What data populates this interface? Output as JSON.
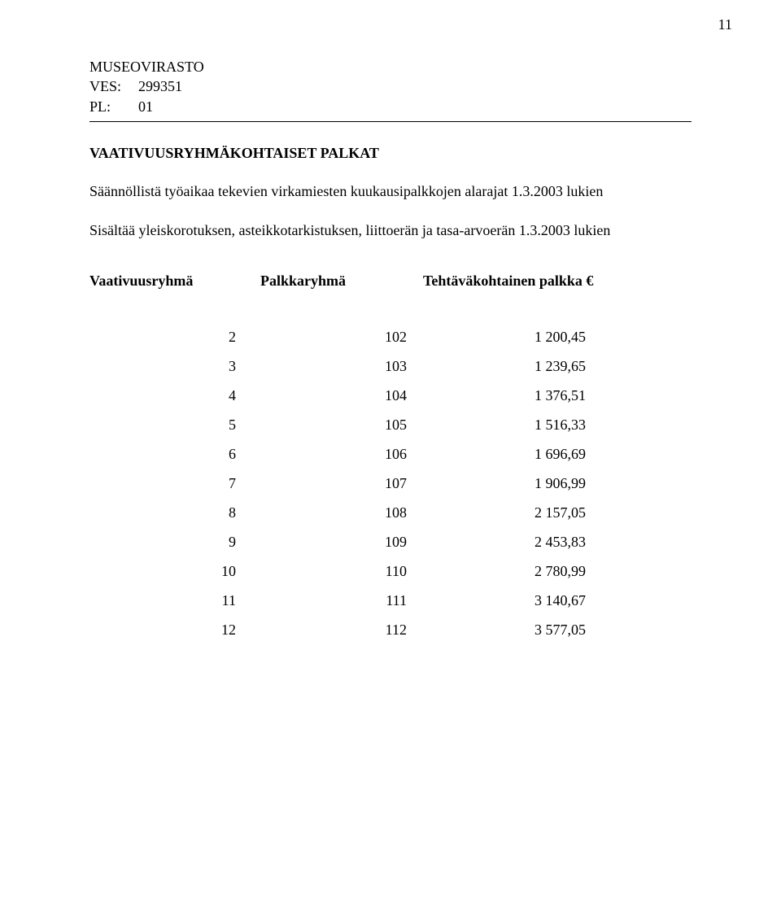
{
  "page_number": "11",
  "org": {
    "name": "MUSEOVIRASTO",
    "ves_label": "VES:",
    "ves_value": "299351",
    "pl_label": "PL:",
    "pl_value": "01"
  },
  "section_title": "VAATIVUUSRYHMÄKOHTAISET PALKAT",
  "paragraph1": "Säännöllistä työaikaa tekevien virkamiesten kuukausipalkkojen alarajat 1.3.2003 lukien",
  "paragraph2": "Sisältää yleiskorotuksen, asteikkotarkistuksen, liittoerän ja tasa-arvoerän 1.3.2003 lukien",
  "table": {
    "headers": {
      "col1": "Vaativuusryhmä",
      "col2": "Palkkaryhmä",
      "col3": "Tehtäväkohtainen palkka €"
    },
    "rows": [
      {
        "c1": "2",
        "c2": "102",
        "c3": "1 200,45"
      },
      {
        "c1": "3",
        "c2": "103",
        "c3": "1 239,65"
      },
      {
        "c1": "4",
        "c2": "104",
        "c3": "1 376,51"
      },
      {
        "c1": "5",
        "c2": "105",
        "c3": "1 516,33"
      },
      {
        "c1": "6",
        "c2": "106",
        "c3": "1 696,69"
      },
      {
        "c1": "7",
        "c2": "107",
        "c3": "1 906,99"
      },
      {
        "c1": "8",
        "c2": "108",
        "c3": "2 157,05"
      },
      {
        "c1": "9",
        "c2": "109",
        "c3": "2 453,83"
      },
      {
        "c1": "10",
        "c2": "110",
        "c3": "2 780,99"
      },
      {
        "c1": "11",
        "c2": "111",
        "c3": "3 140,67"
      },
      {
        "c1": "12",
        "c2": "112",
        "c3": "3 577,05"
      }
    ]
  }
}
